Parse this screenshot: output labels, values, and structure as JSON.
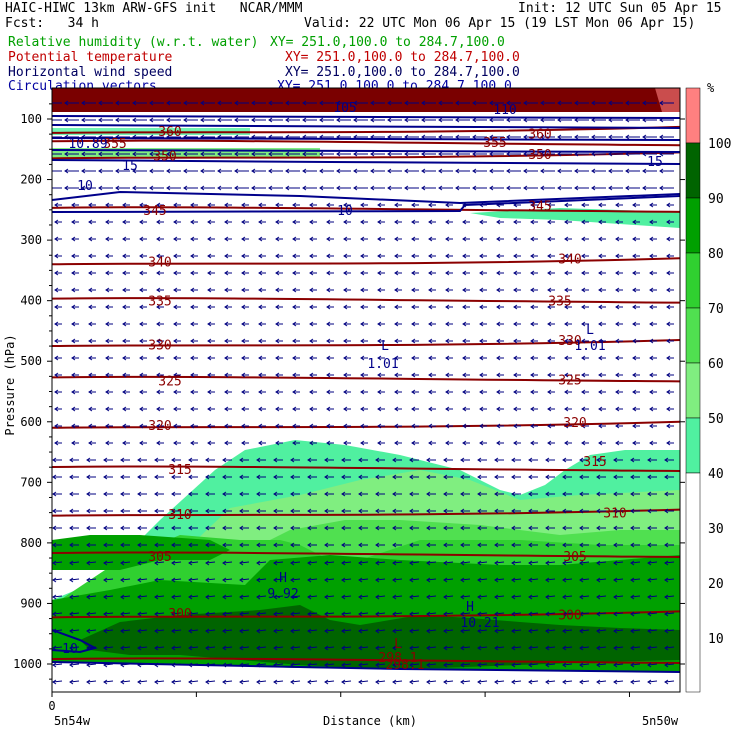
{
  "header": {
    "model_line": "HAIC-HIWC 13km ARW-GFS init   NCAR/MMM",
    "fcst_line": "Fcst:   34 h",
    "init_line": "Init: 12 UTC Sun 05 Apr 15",
    "valid_line": "Valid: 22 UTC Mon 06 Apr 15 (19 LST Mon 06 Apr 15)"
  },
  "fields": [
    {
      "name": "Relative humidity (w.r.t. water)",
      "xy": "XY= 251.0,100.0 to 284.7,100.0",
      "color": "#00a000"
    },
    {
      "name": "Potential temperature",
      "xy": "XY= 251.0,100.0 to 284.7,100.0",
      "color": "#c00000"
    },
    {
      "name": "Horizontal wind speed",
      "xy": "XY= 251.0,100.0 to 284.7,100.0",
      "color": "#000060"
    },
    {
      "name": "Circulation vectors",
      "xy": "XY= 251.0,100.0 to 284.7,100.0",
      "color": "#0000a0"
    }
  ],
  "axes": {
    "ylabel": "Pressure (hPa)",
    "xlabel": "Distance (km)",
    "x_origin": "0",
    "left_end": "5n54w",
    "right_end": "5n50w"
  },
  "colorbar": {
    "unit": "%",
    "labels": [
      "100",
      "90",
      "80",
      "70",
      "60",
      "50",
      "40",
      "30",
      "20",
      "10"
    ],
    "colors": [
      "#ff8080",
      "#006400",
      "#00a000",
      "#30d030",
      "#50e050",
      "#80ee80",
      "#50f0a0"
    ]
  },
  "colors": {
    "theta": "#8b0000",
    "wind": "#00008b",
    "vectors": "#000080",
    "rh_50": "#50f0a0",
    "rh_60": "#80ee80",
    "rh_70": "#50e050",
    "rh_80": "#30d030",
    "rh_90": "#00a000",
    "rh_100": "#006400",
    "rh_top": "#7a0000"
  },
  "chart_data": {
    "type": "cross-section",
    "y_scale": "pressure",
    "ylim": [
      1050,
      50
    ],
    "y_ticks": [
      100,
      200,
      300,
      400,
      500,
      600,
      700,
      800,
      900,
      1000
    ],
    "x_tick_labels": [
      "0"
    ],
    "theta_contours": [
      {
        "label": "345",
        "p": 250
      },
      {
        "label": "340",
        "p": 335
      },
      {
        "label": "335",
        "p": 400
      },
      {
        "label": "330",
        "p": 470
      },
      {
        "label": "325",
        "p": 530
      },
      {
        "label": "320",
        "p": 605
      },
      {
        "label": "315",
        "p": 678
      },
      {
        "label": "310",
        "p": 750
      },
      {
        "label": "305",
        "p": 820
      },
      {
        "label": "300",
        "p": 918
      },
      {
        "label": "298.1",
        "p": 995
      },
      {
        "label": "350",
        "p": 160
      },
      {
        "label": "355",
        "p": 140
      },
      {
        "label": "360",
        "p": 118
      }
    ],
    "wind_labels": [
      "10.89",
      "10",
      "15",
      "105",
      "110",
      "15",
      "10",
      "10"
    ],
    "extrema": [
      {
        "kind": "L",
        "value": "1.01"
      },
      {
        "kind": "L",
        "value": "1.01"
      },
      {
        "kind": "H",
        "value": "9.92"
      },
      {
        "kind": "H",
        "value": "10.21"
      },
      {
        "kind": "L",
        "value": "298.1"
      }
    ]
  }
}
